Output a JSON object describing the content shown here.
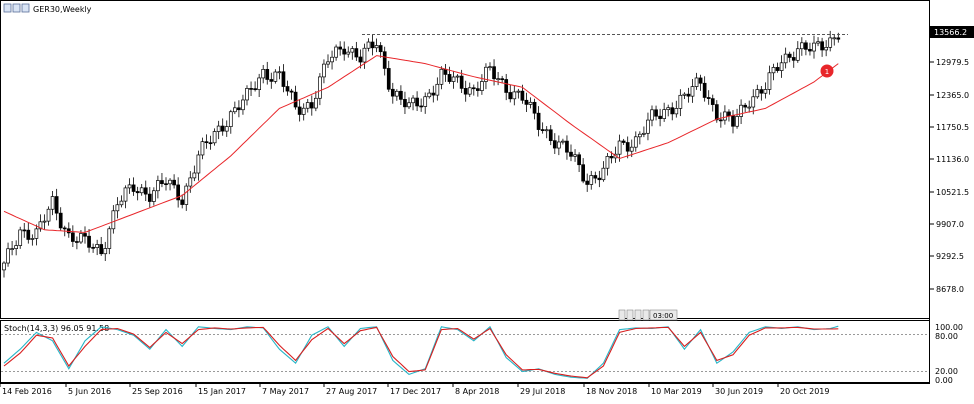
{
  "chart_header": {
    "symbol_label": "GER30,Weekly",
    "price_badge": "13566.2",
    "marker_number": "1"
  },
  "price_axis": {
    "ticks": [
      "12979.5",
      "12365.0",
      "11750.5",
      "11136.0",
      "10521.5",
      "9907.0",
      "9292.5",
      "8678.0"
    ]
  },
  "time_axis": {
    "ticks": [
      "14 Feb 2016",
      "5 Jun 2016",
      "25 Sep 2016",
      "15 Jan 2017",
      "7 May 2017",
      "27 Aug 2017",
      "17 Dec 2017",
      "8 Apr 2018",
      "29 Jul 2018",
      "18 Nov 2018",
      "10 Mar 2019",
      "30 Jun 2019",
      "20 Oct 2019"
    ]
  },
  "stoch_panel": {
    "label": "Stoch(14,3,3) 96.05 91.58",
    "ticks": [
      "100.00",
      "80.00",
      "20.00",
      "0.00"
    ],
    "time_box": "03:00"
  },
  "colors": {
    "bull": "#ffffff",
    "bear": "#000000",
    "ma": "#e8262a",
    "stoch_main": "#27b5c7",
    "stoch_signal": "#d81e1e",
    "marker": "#e8262a"
  },
  "chart_data": [
    {
      "type": "candlestick",
      "symbol": "GER30",
      "timeframe": "Weekly",
      "price_range": [
        8500,
        13800
      ],
      "resistance_level": 13566.2,
      "tick_values": [
        12979.5,
        12365.0,
        11750.5,
        11136.0,
        10521.5,
        9907.0,
        9292.5,
        8678.0
      ],
      "close_anchors": [
        [
          0,
          9100
        ],
        [
          4,
          9800
        ],
        [
          8,
          9700
        ],
        [
          12,
          10300
        ],
        [
          16,
          9700
        ],
        [
          20,
          9550
        ],
        [
          24,
          9400
        ],
        [
          28,
          10300
        ],
        [
          32,
          10600
        ],
        [
          36,
          10500
        ],
        [
          40,
          10700
        ],
        [
          44,
          10400
        ],
        [
          48,
          11200
        ],
        [
          52,
          11600
        ],
        [
          56,
          12000
        ],
        [
          60,
          12300
        ],
        [
          64,
          12800
        ],
        [
          68,
          12700
        ],
        [
          72,
          12100
        ],
        [
          76,
          12200
        ],
        [
          80,
          13000
        ],
        [
          84,
          13300
        ],
        [
          88,
          13050
        ],
        [
          92,
          13350
        ],
        [
          96,
          12400
        ],
        [
          100,
          12100
        ],
        [
          104,
          12300
        ],
        [
          108,
          12700
        ],
        [
          112,
          12600
        ],
        [
          116,
          12450
        ],
        [
          120,
          12800
        ],
        [
          124,
          12500
        ],
        [
          128,
          12300
        ],
        [
          132,
          11800
        ],
        [
          136,
          11500
        ],
        [
          140,
          11200
        ],
        [
          144,
          10750
        ],
        [
          148,
          10900
        ],
        [
          152,
          11400
        ],
        [
          156,
          11500
        ],
        [
          160,
          11900
        ],
        [
          164,
          12100
        ],
        [
          168,
          12300
        ],
        [
          172,
          12600
        ],
        [
          176,
          12000
        ],
        [
          180,
          11800
        ],
        [
          184,
          12300
        ],
        [
          188,
          12500
        ],
        [
          192,
          13000
        ],
        [
          196,
          13250
        ],
        [
          200,
          13200
        ],
        [
          204,
          13400
        ],
        [
          206,
          13560
        ]
      ],
      "moving_average_anchors": [
        [
          0,
          10150
        ],
        [
          10,
          9800
        ],
        [
          20,
          9750
        ],
        [
          32,
          10100
        ],
        [
          44,
          10450
        ],
        [
          56,
          11200
        ],
        [
          68,
          12100
        ],
        [
          80,
          12500
        ],
        [
          92,
          13100
        ],
        [
          104,
          12950
        ],
        [
          116,
          12700
        ],
        [
          128,
          12500
        ],
        [
          140,
          11800
        ],
        [
          152,
          11150
        ],
        [
          164,
          11450
        ],
        [
          176,
          11900
        ],
        [
          188,
          12100
        ],
        [
          200,
          12600
        ],
        [
          206,
          12950
        ]
      ]
    },
    {
      "type": "line",
      "indicator": "Stochastic",
      "params": "14,3,3",
      "latest_main": 96.05,
      "latest_signal": 91.58,
      "y_range": [
        0,
        100
      ],
      "levels": [
        20,
        80
      ],
      "series": [
        {
          "role": "main",
          "anchors": [
            [
              0,
              30
            ],
            [
              4,
              55
            ],
            [
              8,
              85
            ],
            [
              12,
              70
            ],
            [
              16,
              20
            ],
            [
              20,
              70
            ],
            [
              24,
              95
            ],
            [
              28,
              90
            ],
            [
              32,
              80
            ],
            [
              36,
              55
            ],
            [
              40,
              90
            ],
            [
              44,
              60
            ],
            [
              48,
              95
            ],
            [
              52,
              92
            ],
            [
              56,
              90
            ],
            [
              60,
              95
            ],
            [
              64,
              93
            ],
            [
              68,
              55
            ],
            [
              72,
              30
            ],
            [
              76,
              80
            ],
            [
              80,
              95
            ],
            [
              84,
              60
            ],
            [
              88,
              92
            ],
            [
              92,
              95
            ],
            [
              96,
              35
            ],
            [
              100,
              10
            ],
            [
              104,
              20
            ],
            [
              108,
              95
            ],
            [
              112,
              90
            ],
            [
              116,
              70
            ],
            [
              120,
              95
            ],
            [
              124,
              40
            ],
            [
              128,
              15
            ],
            [
              132,
              20
            ],
            [
              136,
              10
            ],
            [
              140,
              5
            ],
            [
              144,
              3
            ],
            [
              148,
              30
            ],
            [
              152,
              90
            ],
            [
              156,
              93
            ],
            [
              160,
              92
            ],
            [
              164,
              95
            ],
            [
              168,
              55
            ],
            [
              172,
              90
            ],
            [
              176,
              30
            ],
            [
              180,
              50
            ],
            [
              184,
              85
            ],
            [
              188,
              95
            ],
            [
              192,
              92
            ],
            [
              196,
              95
            ],
            [
              200,
              90
            ],
            [
              204,
              92
            ],
            [
              206,
              96
            ]
          ]
        },
        {
          "role": "signal",
          "anchors": [
            [
              0,
              25
            ],
            [
              4,
              48
            ],
            [
              8,
              80
            ],
            [
              12,
              75
            ],
            [
              16,
              25
            ],
            [
              20,
              60
            ],
            [
              24,
              90
            ],
            [
              28,
              92
            ],
            [
              32,
              82
            ],
            [
              36,
              58
            ],
            [
              40,
              85
            ],
            [
              44,
              65
            ],
            [
              48,
              90
            ],
            [
              52,
              93
            ],
            [
              56,
              91
            ],
            [
              60,
              93
            ],
            [
              64,
              94
            ],
            [
              68,
              62
            ],
            [
              72,
              35
            ],
            [
              76,
              72
            ],
            [
              80,
              92
            ],
            [
              84,
              65
            ],
            [
              88,
              88
            ],
            [
              92,
              94
            ],
            [
              96,
              42
            ],
            [
              100,
              15
            ],
            [
              104,
              18
            ],
            [
              108,
              90
            ],
            [
              112,
              92
            ],
            [
              116,
              73
            ],
            [
              120,
              92
            ],
            [
              124,
              45
            ],
            [
              128,
              18
            ],
            [
              132,
              19
            ],
            [
              136,
              12
            ],
            [
              140,
              7
            ],
            [
              144,
              4
            ],
            [
              148,
              25
            ],
            [
              152,
              85
            ],
            [
              156,
              92
            ],
            [
              160,
              93
            ],
            [
              164,
              94
            ],
            [
              168,
              60
            ],
            [
              172,
              85
            ],
            [
              176,
              35
            ],
            [
              180,
              45
            ],
            [
              184,
              80
            ],
            [
              188,
              93
            ],
            [
              192,
              93
            ],
            [
              196,
              94
            ],
            [
              200,
              91
            ],
            [
              204,
              91
            ],
            [
              206,
              91.5
            ]
          ]
        }
      ]
    }
  ]
}
